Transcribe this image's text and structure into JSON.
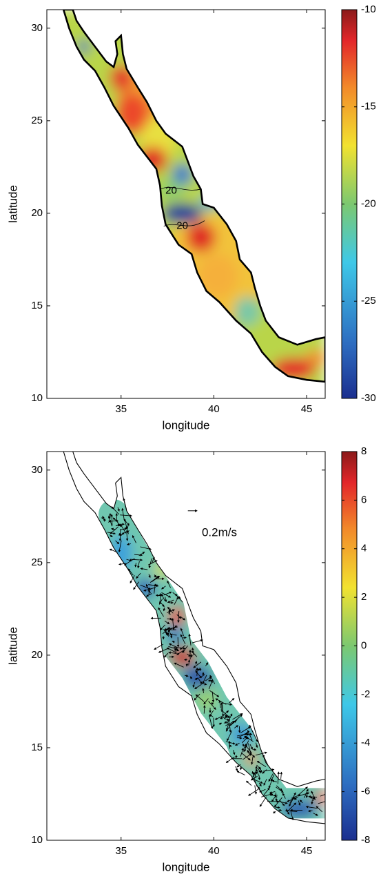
{
  "chart_data": [
    {
      "type": "map",
      "xlabel": "longitude",
      "ylabel": "latitude",
      "xlim": [
        31,
        46
      ],
      "ylim": [
        10,
        31
      ],
      "xticks": [
        35,
        40,
        45
      ],
      "yticks": [
        10,
        15,
        20,
        25,
        30
      ],
      "clim": [
        -30,
        -10
      ],
      "cticks": [
        -30,
        -25,
        -20,
        -15,
        -10
      ],
      "colormap": "jet",
      "annotations": [
        "20",
        "20"
      ]
    },
    {
      "type": "map",
      "xlabel": "longitude",
      "ylabel": "latitude",
      "xlim": [
        31,
        46
      ],
      "ylim": [
        10,
        31
      ],
      "xticks": [
        35,
        40,
        45
      ],
      "yticks": [
        10,
        15,
        20,
        25,
        30
      ],
      "clim": [
        -8,
        8
      ],
      "cticks": [
        -8,
        -6,
        -4,
        -2,
        0,
        2,
        4,
        6,
        8
      ],
      "colormap": "jet",
      "annotations": [
        "0.2m/s"
      ]
    }
  ]
}
